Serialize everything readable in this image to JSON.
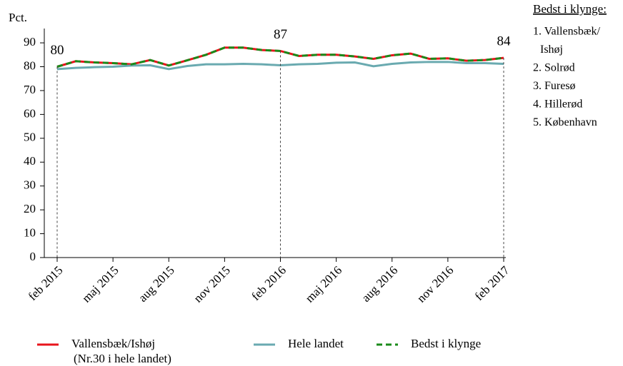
{
  "chart_data": {
    "type": "line",
    "y_label": "Pct.",
    "categories": [
      "feb 2015",
      null,
      null,
      "maj 2015",
      null,
      null,
      "aug 2015",
      null,
      null,
      "nov 2015",
      null,
      null,
      "feb 2016",
      null,
      null,
      "maj 2016",
      null,
      null,
      "aug 2016",
      null,
      null,
      "nov 2016",
      null,
      null,
      "feb 2017"
    ],
    "ylim": [
      0,
      96
    ],
    "yticks": [
      0,
      10,
      20,
      30,
      40,
      50,
      60,
      70,
      80,
      90
    ],
    "series": [
      {
        "name": "Vallensbæk/Ishøj",
        "color": "#e8141c",
        "dash": false,
        "values": [
          80,
          82.3,
          81.8,
          81.5,
          81,
          82.8,
          80.5,
          82.7,
          85,
          88,
          88,
          87,
          86.6,
          84.5,
          85,
          85,
          84.3,
          83.3,
          84.8,
          85.5,
          83.3,
          83.5,
          82.5,
          82.8,
          83.7
        ],
        "value_labels": [
          "80",
          null,
          null,
          null,
          null,
          null,
          null,
          null,
          null,
          null,
          null,
          null,
          "87",
          null,
          null,
          null,
          null,
          null,
          null,
          null,
          null,
          null,
          null,
          null,
          "84"
        ]
      },
      {
        "name": "Hele landet",
        "color": "#6aaab0",
        "dash": false,
        "values": [
          79,
          79.5,
          79.8,
          80,
          80.5,
          80.6,
          79,
          80.3,
          81,
          81,
          81.2,
          81,
          80.6,
          81,
          81.2,
          81.7,
          81.8,
          80.2,
          81.2,
          81.8,
          82,
          82,
          81.5,
          81.5,
          81.2
        ]
      },
      {
        "name": "Bedst i klynge",
        "color": "#1a8a1a",
        "dash": true,
        "values": [
          80,
          82.3,
          81.8,
          81.5,
          81,
          82.8,
          80.5,
          82.7,
          85,
          88,
          88,
          87,
          86.6,
          84.5,
          85,
          85,
          84.3,
          83.3,
          84.8,
          85.5,
          83.3,
          83.5,
          82.5,
          82.8,
          83.7
        ]
      }
    ],
    "legend_note": "(Nr.30 i hele landet)",
    "ranking": {
      "title": "Bedst i klynge:",
      "items": [
        [
          "1. Vallensbæk/",
          "Ishøj"
        ],
        [
          "2. Solrød"
        ],
        [
          "3. Furesø"
        ],
        [
          "4. Hillerød"
        ],
        [
          "5. København"
        ]
      ]
    }
  }
}
